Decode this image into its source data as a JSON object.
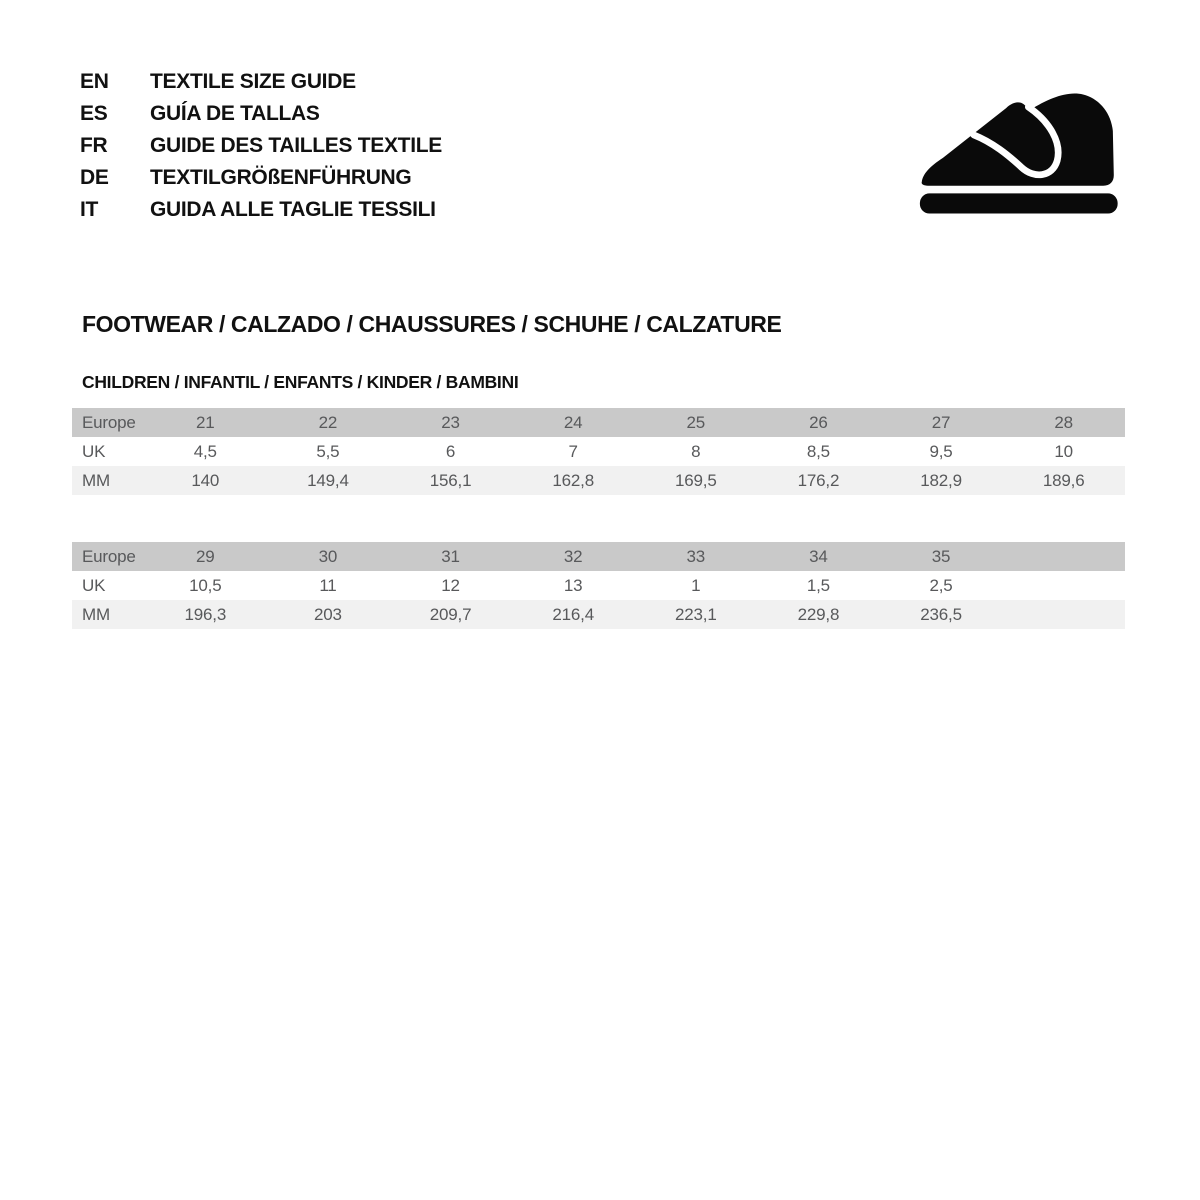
{
  "document": {
    "languages": [
      {
        "code": "EN",
        "title": "TEXTILE SIZE GUIDE"
      },
      {
        "code": "ES",
        "title": "GUÍA DE TALLAS"
      },
      {
        "code": "FR",
        "title": "GUIDE DES TAILLES TEXTILE"
      },
      {
        "code": "DE",
        "title": "TEXTILGRÖßENFÜHRUNG"
      },
      {
        "code": "IT",
        "title": "GUIDA ALLE TAGLIE TESSILI"
      }
    ],
    "section_title": "FOOTWEAR / CALZADO / CHAUSSURES / SCHUHE / CALZATURE",
    "section_subtitle": "CHILDREN / INFANTIL / ENFANTS / KINDER / BAMBINI",
    "shoe_icon": "children-shoe-icon"
  },
  "colors": {
    "background": "#ffffff",
    "header_row_bg": "#c9c9c9",
    "stripe_row_bg": "#f1f1f1",
    "table_text": "#58595b",
    "heading_text": "#111111",
    "icon_fill": "#0a0a0a"
  },
  "tables": [
    {
      "name": "children-sizes-21-28",
      "rows": [
        {
          "label": "Europe",
          "values": [
            "21",
            "22",
            "23",
            "24",
            "25",
            "26",
            "27",
            "28"
          ]
        },
        {
          "label": "UK",
          "values": [
            "4,5",
            "5,5",
            "6",
            "7",
            "8",
            "8,5",
            "9,5",
            "10"
          ]
        },
        {
          "label": "MM",
          "values": [
            "140",
            "149,4",
            "156,1",
            "162,8",
            "169,5",
            "176,2",
            "182,9",
            "189,6"
          ]
        }
      ]
    },
    {
      "name": "children-sizes-29-35",
      "rows": [
        {
          "label": "Europe",
          "values": [
            "29",
            "30",
            "31",
            "32",
            "33",
            "34",
            "35",
            ""
          ]
        },
        {
          "label": "UK",
          "values": [
            "10,5",
            "11",
            "12",
            "13",
            "1",
            "1,5",
            "2,5",
            ""
          ]
        },
        {
          "label": "MM",
          "values": [
            "196,3",
            "203",
            "209,7",
            "216,4",
            "223,1",
            "229,8",
            "236,5",
            ""
          ]
        }
      ]
    }
  ]
}
